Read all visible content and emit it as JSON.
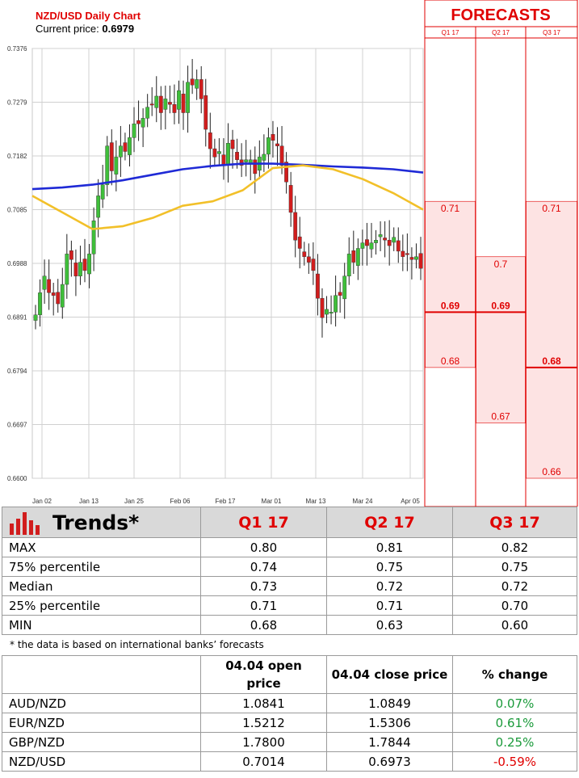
{
  "chart": {
    "title": "NZD/USD Daily Chart",
    "current_price_label": "Current price:",
    "current_price": "0.6979",
    "y_ticks": [
      "0.7376",
      "0.7279",
      "0.7182",
      "0.7085",
      "0.6988",
      "0.6891",
      "0.6794",
      "0.6697",
      "0.6600"
    ],
    "x_ticks": [
      "Jan 02",
      "Jan 13",
      "Jan 25",
      "Feb 06",
      "Feb 17",
      "Mar 01",
      "Mar 13",
      "Mar 24",
      "Apr 05"
    ]
  },
  "chart_data": {
    "type": "candlestick",
    "title": "NZD/USD Daily Chart",
    "ylim": [
      0.66,
      0.7376
    ],
    "grid": true,
    "closes": [
      0.6895,
      0.6935,
      0.6965,
      0.6935,
      0.693,
      0.6915,
      0.695,
      0.7005,
      0.6995,
      0.6965,
      0.699,
      0.6975,
      0.7005,
      0.7065,
      0.711,
      0.713,
      0.72,
      0.7155,
      0.718,
      0.72,
      0.719,
      0.7215,
      0.724,
      0.724,
      0.725,
      0.727,
      0.7275,
      0.729,
      0.726,
      0.7285,
      0.7275,
      0.726,
      0.73,
      0.726,
      0.7315,
      0.731,
      0.732,
      0.7285,
      0.723,
      0.7195,
      0.718,
      0.719,
      0.7165,
      0.7205,
      0.7195,
      0.7175,
      0.7165,
      0.7175,
      0.7175,
      0.715,
      0.718,
      0.7185,
      0.7215,
      0.721,
      0.72,
      0.7165,
      0.7135,
      0.708,
      0.703,
      0.7015,
      0.7,
      0.699,
      0.6975,
      0.6925,
      0.689,
      0.6905,
      0.69,
      0.693,
      0.693,
      0.6965,
      0.7005,
      0.699,
      0.7015,
      0.7025,
      0.702,
      0.7025,
      0.703,
      0.704,
      0.703,
      0.702,
      0.7035,
      0.701,
      0.7,
      0.7005,
      0.6995,
      0.7,
      0.6979
    ],
    "moving_averages": [
      {
        "color": "#1f2ad6",
        "values": [
          0.7122,
          0.7125,
          0.713,
          0.7138,
          0.7148,
          0.7158,
          0.7164,
          0.7168,
          0.7168,
          0.7166,
          0.7163,
          0.7161,
          0.7158,
          0.7152
        ]
      },
      {
        "color": "#f2c029",
        "values": [
          0.711,
          0.708,
          0.705,
          0.7055,
          0.707,
          0.7092,
          0.71,
          0.712,
          0.716,
          0.7165,
          0.7158,
          0.714,
          0.7115,
          0.7085
        ]
      }
    ]
  },
  "forecasts": {
    "title": "FORECASTS",
    "columns": [
      {
        "label": "Q1 17",
        "max": 0.71,
        "median": 0.69,
        "min": 0.68
      },
      {
        "label": "Q2 17",
        "max": 0.7,
        "median": 0.69,
        "min": 0.67
      },
      {
        "label": "Q3 17",
        "max": 0.71,
        "median": 0.68,
        "min": 0.66
      }
    ],
    "labels": {
      "q1_max": "0.71",
      "q1_median": "0.69",
      "q1_min": "0.68",
      "q2_max": "0.7",
      "q2_median": "0.69",
      "q2_min": "0.67",
      "q3_max": "0.71",
      "q3_median": "0.68",
      "q3_min": "0.66"
    }
  },
  "trends": {
    "title": "Trends*",
    "headers": [
      "Q1 17",
      "Q2 17",
      "Q3 17"
    ],
    "rows": [
      {
        "label": "MAX",
        "values": [
          "0.80",
          "0.81",
          "0.82"
        ]
      },
      {
        "label": "75% percentile",
        "values": [
          "0.74",
          "0.75",
          "0.75"
        ]
      },
      {
        "label": "Median",
        "values": [
          "0.73",
          "0.72",
          "0.72"
        ]
      },
      {
        "label": "25% percentile",
        "values": [
          "0.71",
          "0.71",
          "0.70"
        ]
      },
      {
        "label": "MIN",
        "values": [
          "0.68",
          "0.63",
          "0.60"
        ]
      }
    ],
    "footnote": "* the data is based on international banks’ forecasts"
  },
  "fx": {
    "headers": {
      "open_line1": "04.04 open",
      "open_line2": "price",
      "close": "04.04 close price",
      "change": "% change"
    },
    "rows": [
      {
        "pair": "AUD/NZD",
        "open": "1.0841",
        "close": "1.0849",
        "change": "0.07%",
        "direction": "up"
      },
      {
        "pair": "EUR/NZD",
        "open": "1.5212",
        "close": "1.5306",
        "change": "0.61%",
        "direction": "up"
      },
      {
        "pair": "GBP/NZD",
        "open": "1.7800",
        "close": "1.7844",
        "change": "0.25%",
        "direction": "up"
      },
      {
        "pair": "NZD/USD",
        "open": "0.7014",
        "close": "0.6973",
        "change": "-0.59%",
        "direction": "down"
      }
    ]
  },
  "colors": {
    "accent": "#e00000",
    "bull": "#3fbf3a",
    "bear": "#d11d1d",
    "forecast_fill": "#fde3e3",
    "header_fill": "#d9d9d9"
  }
}
